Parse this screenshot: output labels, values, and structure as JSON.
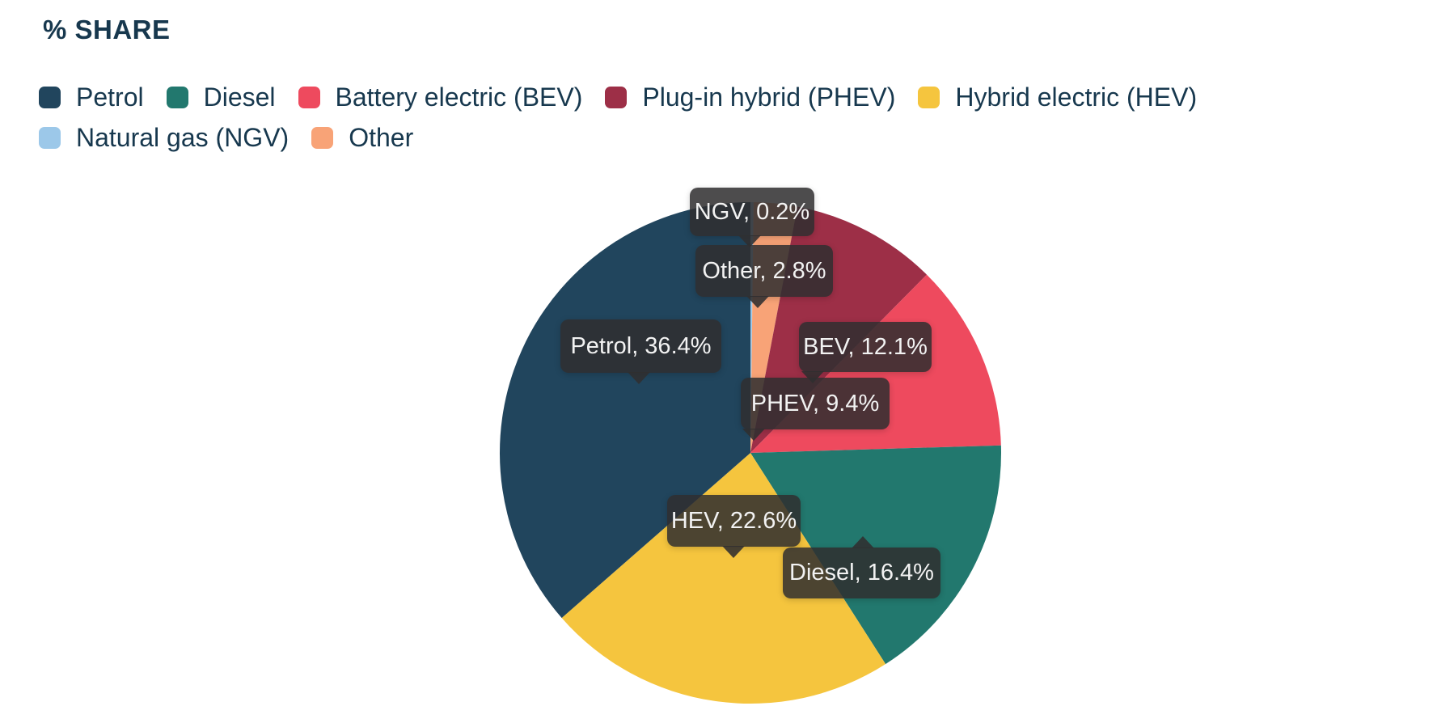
{
  "chart_data": {
    "type": "pie",
    "title": "% SHARE",
    "legend_position": "top",
    "direction": "clockwise",
    "start_angle_deg": 0,
    "text_color": "#17384e",
    "callout_bg": "#302f30",
    "callout_text_color": "#f2f2f2",
    "series": [
      {
        "key": "petrol",
        "label": "Petrol",
        "value": 36.4,
        "color": "#21455d",
        "callout": "Petrol, 36.4%"
      },
      {
        "key": "diesel",
        "label": "Diesel",
        "value": 16.4,
        "color": "#22786e",
        "callout": "Diesel, 16.4%"
      },
      {
        "key": "bev",
        "label": "Battery electric (BEV)",
        "value": 12.1,
        "color": "#ee4a5e",
        "callout": "BEV, 12.1%"
      },
      {
        "key": "phev",
        "label": "Plug-in hybrid (PHEV)",
        "value": 9.4,
        "color": "#9d2f47",
        "callout": "PHEV, 9.4%"
      },
      {
        "key": "hev",
        "label": "Hybrid electric (HEV)",
        "value": 22.6,
        "color": "#f5c53e",
        "callout": "HEV, 22.6%"
      },
      {
        "key": "ngv",
        "label": "Natural gas (NGV)",
        "value": 0.2,
        "color": "#9cc8e9",
        "callout": "NGV, 0.2%"
      },
      {
        "key": "other",
        "label": "Other",
        "value": 2.8,
        "color": "#f8a377",
        "callout": "Other, 2.8%"
      }
    ],
    "draw_order": [
      "ngv",
      "other",
      "phev",
      "bev",
      "diesel",
      "hev",
      "petrol"
    ]
  }
}
